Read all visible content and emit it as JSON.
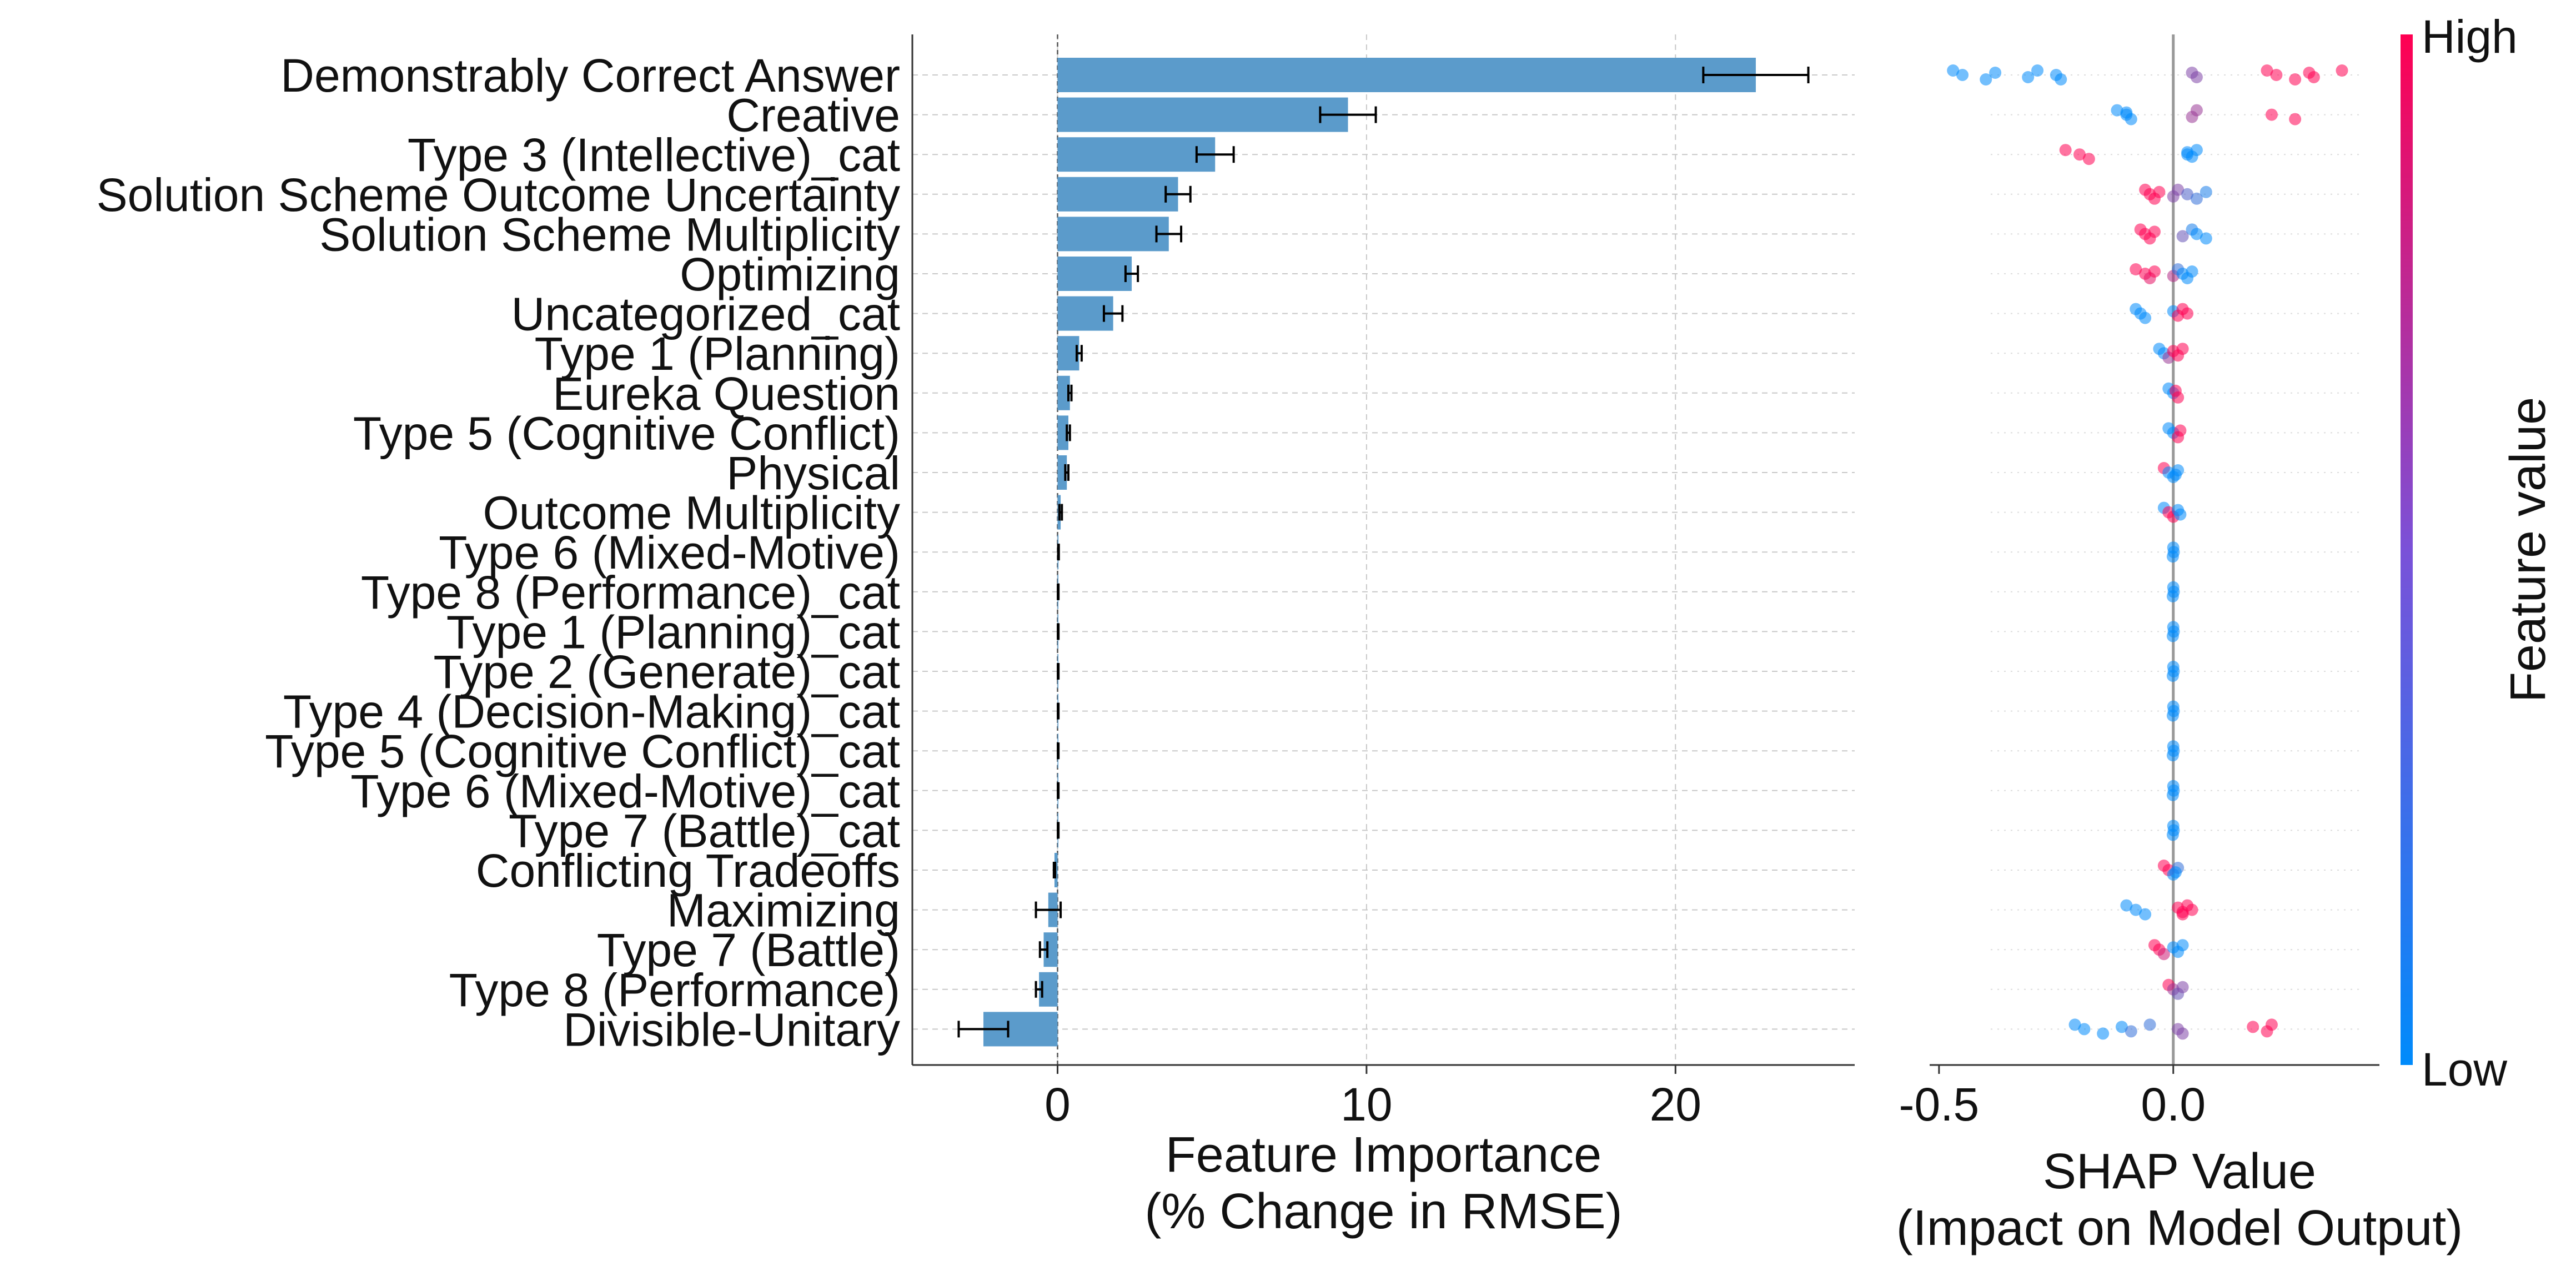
{
  "chart_data": [
    {
      "type": "bar",
      "orientation": "horizontal",
      "xlabel": "Feature Importance\n(% Change in RMSE)",
      "xlim": [
        -4.7,
        25.8
      ],
      "xticks": [
        0,
        10,
        20
      ],
      "grid": true,
      "categories": [
        "Demonstrably Correct Answer",
        "Creative",
        "Type 3 (Intellective)_cat",
        "Solution Scheme Outcome Uncertainty",
        "Solution Scheme Multiplicity",
        "Optimizing",
        "Uncategorized_cat",
        "Type 1 (Planning)",
        "Eureka Question",
        "Type 5 (Cognitive Conflict)",
        "Physical",
        "Outcome Multiplicity",
        "Type 6 (Mixed-Motive)",
        "Type 8 (Performance)_cat",
        "Type 1 (Planning)_cat",
        "Type 2 (Generate)_cat",
        "Type 4 (Decision-Making)_cat",
        "Type 5 (Cognitive Conflict)_cat",
        "Type 6 (Mixed-Motive)_cat",
        "Type 7 (Battle)_cat",
        "Conflicting Tradeoffs",
        "Maximizing",
        "Type 7 (Battle)",
        "Type 8 (Performance)",
        "Divisible-Unitary"
      ],
      "values": [
        22.6,
        9.4,
        5.1,
        3.9,
        3.6,
        2.4,
        1.8,
        0.7,
        0.4,
        0.35,
        0.3,
        0.1,
        0.03,
        0.02,
        0.02,
        0.02,
        0.02,
        0.02,
        0.02,
        0.02,
        -0.1,
        -0.3,
        -0.45,
        -0.6,
        -2.4
      ],
      "errors": [
        1.7,
        0.9,
        0.6,
        0.4,
        0.4,
        0.2,
        0.3,
        0.08,
        0.05,
        0.05,
        0.05,
        0.04,
        0.01,
        0.01,
        0.01,
        0.01,
        0.01,
        0.01,
        0.01,
        0.01,
        0.02,
        0.4,
        0.12,
        0.1,
        0.8
      ],
      "bar_color": "#5b9bcb"
    },
    {
      "type": "scatter",
      "xlabel": "SHAP Value\n(Impact on Model Output)",
      "xlim": [
        -0.52,
        0.44
      ],
      "xticks": [
        -0.5,
        0.0
      ],
      "xtick_labels": [
        "-0.5",
        "0.0"
      ],
      "colorbar": {
        "label": "Feature value",
        "high": "High",
        "low": "Low",
        "high_color": "#ff0052",
        "low_color": "#008bfb"
      },
      "rows": [
        {
          "points": [
            [
              -0.47,
              0
            ],
            [
              -0.45,
              0
            ],
            [
              -0.4,
              0
            ],
            [
              -0.38,
              0
            ],
            [
              -0.31,
              0
            ],
            [
              -0.29,
              0
            ],
            [
              -0.25,
              0
            ],
            [
              -0.24,
              0
            ],
            [
              0.04,
              0.5
            ],
            [
              0.05,
              0.5
            ],
            [
              0.2,
              1
            ],
            [
              0.22,
              1
            ],
            [
              0.26,
              1
            ],
            [
              0.29,
              1
            ],
            [
              0.3,
              1
            ],
            [
              0.36,
              1
            ]
          ]
        },
        {
          "points": [
            [
              -0.12,
              0
            ],
            [
              -0.1,
              0
            ],
            [
              -0.09,
              0
            ],
            [
              -0.1,
              0
            ],
            [
              0.04,
              0.6
            ],
            [
              0.05,
              0.6
            ],
            [
              0.21,
              1
            ],
            [
              0.26,
              1
            ]
          ]
        },
        {
          "points": [
            [
              -0.23,
              1
            ],
            [
              -0.2,
              1
            ],
            [
              -0.18,
              1
            ],
            [
              0.03,
              0
            ],
            [
              0.04,
              0
            ],
            [
              0.05,
              0
            ],
            [
              0.03,
              0
            ]
          ]
        },
        {
          "points": [
            [
              -0.06,
              1
            ],
            [
              -0.05,
              1
            ],
            [
              -0.04,
              1
            ],
            [
              -0.03,
              1
            ],
            [
              0.0,
              0.5
            ],
            [
              0.01,
              0.5
            ],
            [
              0.03,
              0.3
            ],
            [
              0.05,
              0.2
            ],
            [
              0.07,
              0.1
            ]
          ]
        },
        {
          "points": [
            [
              -0.07,
              1
            ],
            [
              -0.06,
              1
            ],
            [
              -0.05,
              1
            ],
            [
              -0.04,
              1
            ],
            [
              0.02,
              0.4
            ],
            [
              0.04,
              0.1
            ],
            [
              0.05,
              0
            ],
            [
              0.07,
              0
            ]
          ]
        },
        {
          "points": [
            [
              -0.08,
              1
            ],
            [
              -0.06,
              1
            ],
            [
              -0.05,
              0.9
            ],
            [
              -0.04,
              1
            ],
            [
              0.0,
              0.7
            ],
            [
              0.01,
              0.2
            ],
            [
              0.02,
              0
            ],
            [
              0.03,
              0
            ],
            [
              0.04,
              0
            ]
          ]
        },
        {
          "points": [
            [
              -0.08,
              0
            ],
            [
              -0.07,
              0
            ],
            [
              -0.06,
              0
            ],
            [
              0.0,
              0
            ],
            [
              0.01,
              1
            ],
            [
              0.02,
              1
            ],
            [
              0.03,
              1
            ]
          ]
        },
        {
          "points": [
            [
              -0.03,
              0
            ],
            [
              -0.02,
              0
            ],
            [
              -0.01,
              0.6
            ],
            [
              0.0,
              1
            ],
            [
              0.01,
              1
            ],
            [
              0.02,
              1
            ]
          ]
        },
        {
          "points": [
            [
              -0.01,
              0
            ],
            [
              0.0,
              0
            ],
            [
              0.01,
              1
            ],
            [
              0.005,
              1
            ]
          ]
        },
        {
          "points": [
            [
              -0.01,
              0
            ],
            [
              0.0,
              0
            ],
            [
              0.01,
              1
            ],
            [
              0.015,
              1
            ]
          ]
        },
        {
          "points": [
            [
              -0.02,
              1
            ],
            [
              -0.01,
              0
            ],
            [
              0.0,
              0
            ],
            [
              0.01,
              0
            ],
            [
              0.005,
              0
            ]
          ]
        },
        {
          "points": [
            [
              -0.02,
              0
            ],
            [
              -0.01,
              1
            ],
            [
              0.0,
              1
            ],
            [
              0.01,
              0
            ],
            [
              0.015,
              0
            ]
          ]
        },
        {
          "points": [
            [
              0.0,
              0
            ],
            [
              0.001,
              0
            ],
            [
              -0.001,
              0
            ]
          ]
        },
        {
          "points": [
            [
              0.0,
              0
            ],
            [
              0.001,
              0
            ],
            [
              -0.001,
              0
            ]
          ]
        },
        {
          "points": [
            [
              0.0,
              0
            ],
            [
              0.001,
              0
            ],
            [
              -0.001,
              0
            ]
          ]
        },
        {
          "points": [
            [
              0.0,
              0
            ],
            [
              0.001,
              0
            ],
            [
              -0.001,
              0
            ]
          ]
        },
        {
          "points": [
            [
              0.0,
              0
            ],
            [
              0.001,
              0
            ],
            [
              -0.001,
              0
            ]
          ]
        },
        {
          "points": [
            [
              0.0,
              0
            ],
            [
              0.001,
              0
            ],
            [
              -0.001,
              0
            ]
          ]
        },
        {
          "points": [
            [
              0.0,
              0
            ],
            [
              0.001,
              0
            ],
            [
              -0.001,
              0
            ]
          ]
        },
        {
          "points": [
            [
              0.0,
              0
            ],
            [
              0.001,
              0
            ],
            [
              -0.001,
              0
            ]
          ]
        },
        {
          "points": [
            [
              -0.02,
              1
            ],
            [
              -0.01,
              1
            ],
            [
              0.0,
              0
            ],
            [
              0.01,
              0.2
            ],
            [
              0.005,
              0
            ]
          ]
        },
        {
          "points": [
            [
              -0.1,
              0
            ],
            [
              -0.08,
              0
            ],
            [
              -0.06,
              0
            ],
            [
              0.01,
              1
            ],
            [
              0.02,
              1
            ],
            [
              0.03,
              1
            ],
            [
              0.04,
              1
            ],
            [
              0.02,
              1
            ]
          ]
        },
        {
          "points": [
            [
              -0.04,
              1
            ],
            [
              -0.03,
              1
            ],
            [
              -0.02,
              0.8
            ],
            [
              0.0,
              0
            ],
            [
              0.01,
              0
            ],
            [
              0.02,
              0
            ]
          ]
        },
        {
          "points": [
            [
              -0.01,
              1
            ],
            [
              0.0,
              0.6
            ],
            [
              0.01,
              0.4
            ],
            [
              0.02,
              0.5
            ]
          ]
        },
        {
          "points": [
            [
              -0.21,
              0
            ],
            [
              -0.19,
              0
            ],
            [
              -0.15,
              0
            ],
            [
              -0.11,
              0
            ],
            [
              -0.09,
              0.2
            ],
            [
              -0.05,
              0.2
            ],
            [
              0.01,
              0.5
            ],
            [
              0.02,
              0.5
            ],
            [
              0.17,
              1
            ],
            [
              0.2,
              1
            ],
            [
              0.21,
              1
            ]
          ]
        }
      ]
    }
  ]
}
